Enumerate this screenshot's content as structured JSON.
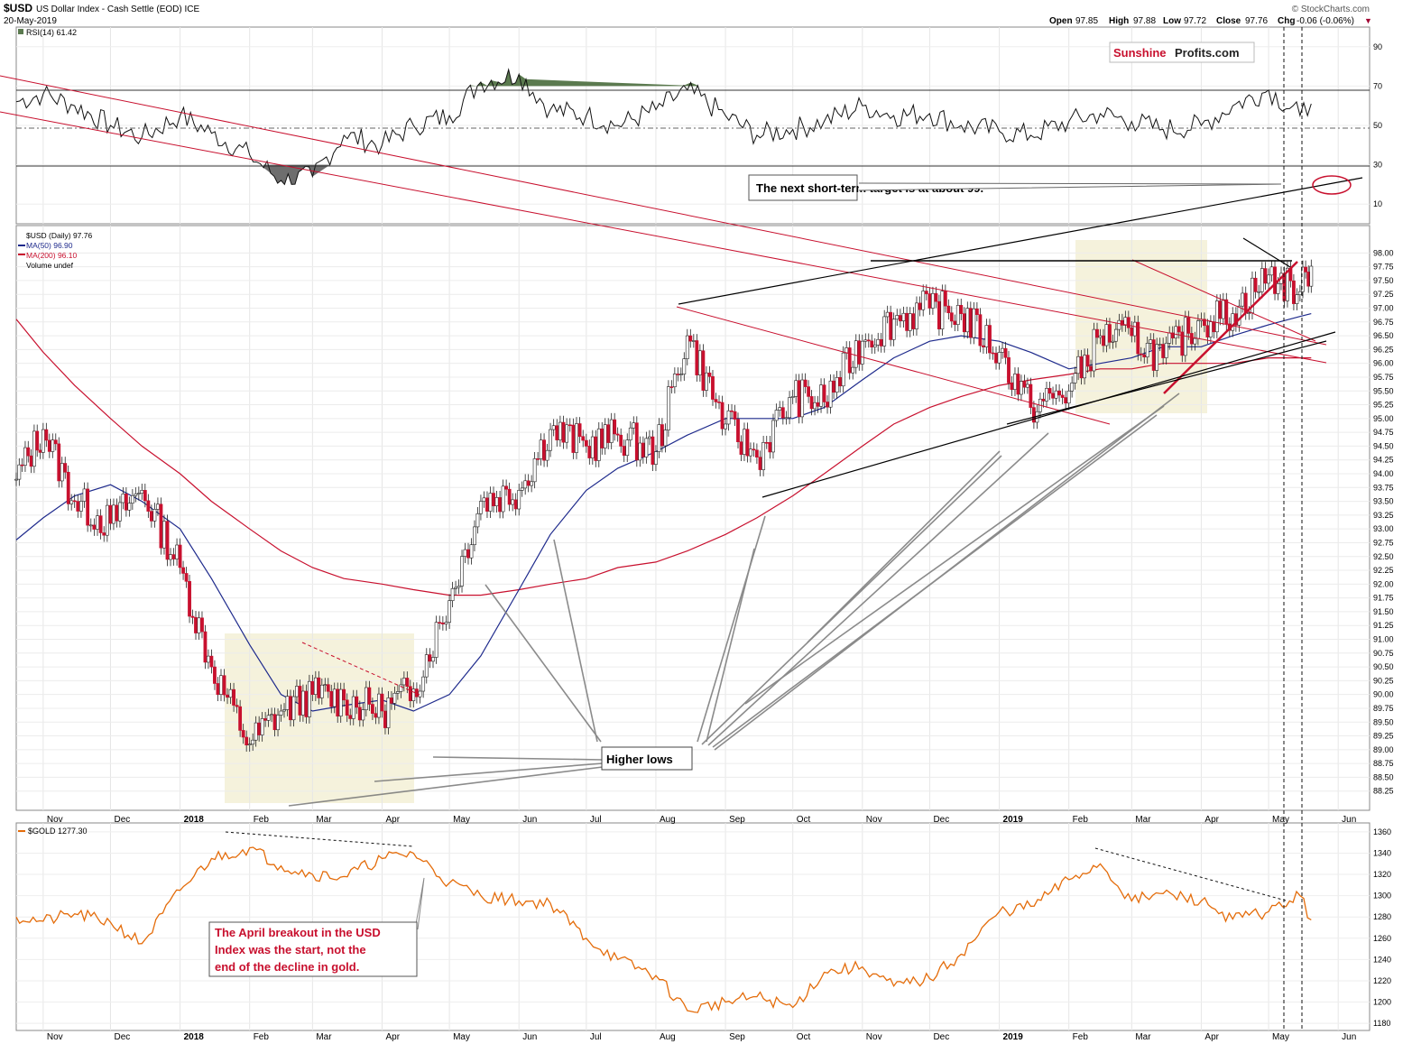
{
  "header": {
    "symbol": "$USD",
    "description": "US Dollar Index - Cash Settle (EOD) ICE",
    "date": "20-May-2019",
    "watermark": "© StockCharts.com",
    "open_label": "Open",
    "open_value": "97.85",
    "high_label": "High",
    "high_value": "97.88",
    "low_label": "Low",
    "low_value": "97.72",
    "close_label": "Close",
    "close_value": "97.76",
    "chg_label": "Chg",
    "chg_value": "-0.06 (-0.06%)",
    "down_arrow": "▼"
  },
  "logo": {
    "part1": "Sunshine",
    "part2": "Profits.com"
  },
  "rsi": {
    "legend": "RSI(14) 61.42"
  },
  "price": {
    "legend_usd": "$USD (Daily) 97.76",
    "legend_ma50": "MA(50) 96.90",
    "legend_ma200": "MA(200) 96.10",
    "legend_volume": "Volume undef"
  },
  "gold": {
    "legend": "$GOLD 1277.30"
  },
  "annotations": {
    "target": "The next short-term target is at about 99.",
    "higher_lows": "Higher lows",
    "breakout_line1": "The April breakout in the USD",
    "breakout_line2": "Index was the start, not the",
    "breakout_line3": "end of the decline in gold."
  },
  "colors": {
    "up_candle": "#ffffff",
    "down_candle": "#c8102e",
    "ma50": "#1e2a8c",
    "ma200": "#c8102e",
    "gold_line": "#e46c0a",
    "trend_red": "#c8102e",
    "highlight": "#f3f0d6",
    "rsi_over": "#5b7a4f",
    "rsi_under": "#6e6e6e",
    "logo_red": "#c8102e"
  },
  "chart_data": [
    {
      "type": "line",
      "title": "RSI(14) 61.42",
      "ylim": [
        0,
        100
      ],
      "yticks": [
        "90",
        "70",
        "50",
        "30",
        "10"
      ],
      "x": [
        "2017-10-20",
        "2017-11-01",
        "2017-11-15",
        "2017-12-01",
        "2017-12-15",
        "2018-01-01",
        "2018-01-15",
        "2018-02-01",
        "2018-02-15",
        "2018-03-01",
        "2018-03-15",
        "2018-04-01",
        "2018-04-15",
        "2018-05-01",
        "2018-05-15",
        "2018-06-01",
        "2018-06-15",
        "2018-07-01",
        "2018-07-15",
        "2018-08-01",
        "2018-08-15",
        "2018-09-01",
        "2018-09-15",
        "2018-10-01",
        "2018-10-15",
        "2018-11-01",
        "2018-11-15",
        "2018-12-01",
        "2018-12-15",
        "2019-01-01",
        "2019-01-15",
        "2019-02-01",
        "2019-02-15",
        "2019-03-01",
        "2019-03-15",
        "2019-04-01",
        "2019-04-15",
        "2019-05-01",
        "2019-05-15",
        "2019-05-20"
      ],
      "values": [
        62,
        66,
        60,
        50,
        44,
        55,
        46,
        35,
        22,
        24,
        45,
        40,
        50,
        55,
        72,
        76,
        58,
        55,
        50,
        58,
        68,
        55,
        45,
        48,
        52,
        60,
        55,
        56,
        50,
        47,
        45,
        52,
        56,
        52,
        48,
        50,
        60,
        68,
        55,
        61
      ]
    },
    {
      "type": "line",
      "title": "$USD (Daily) 97.76",
      "ylim": [
        88,
        98.3
      ],
      "yticks": [
        "98.00",
        "97.75",
        "97.50",
        "97.25",
        "97.00",
        "96.75",
        "96.50",
        "96.25",
        "96.00",
        "95.75",
        "95.50",
        "95.25",
        "95.00",
        "94.75",
        "94.50",
        "94.25",
        "94.00",
        "93.75",
        "93.50",
        "93.25",
        "93.00",
        "92.75",
        "92.50",
        "92.25",
        "92.00",
        "91.75",
        "91.50",
        "91.25",
        "91.00",
        "90.75",
        "90.50",
        "90.25",
        "90.00",
        "89.75",
        "89.50",
        "89.25",
        "89.00",
        "88.75",
        "88.50",
        "88.25"
      ],
      "x_ticks": [
        "Nov",
        "Dec",
        "2018",
        "Feb",
        "Mar",
        "Apr",
        "May",
        "Jun",
        "Jul",
        "Aug",
        "Sep",
        "Oct",
        "Nov",
        "Dec",
        "2019",
        "Feb",
        "Mar",
        "Apr",
        "May",
        "Jun"
      ],
      "x": [
        "2017-10-20",
        "2017-11-01",
        "2017-11-15",
        "2017-12-01",
        "2017-12-15",
        "2018-01-01",
        "2018-01-15",
        "2018-02-01",
        "2018-02-15",
        "2018-03-01",
        "2018-03-15",
        "2018-04-01",
        "2018-04-15",
        "2018-05-01",
        "2018-05-15",
        "2018-06-01",
        "2018-06-15",
        "2018-07-01",
        "2018-07-15",
        "2018-08-01",
        "2018-08-15",
        "2018-09-01",
        "2018-09-15",
        "2018-10-01",
        "2018-10-15",
        "2018-11-01",
        "2018-11-15",
        "2018-12-01",
        "2018-12-15",
        "2019-01-01",
        "2019-01-15",
        "2019-02-01",
        "2019-02-15",
        "2019-03-01",
        "2019-03-15",
        "2019-04-01",
        "2019-04-15",
        "2019-05-01",
        "2019-05-15",
        "2019-05-20"
      ],
      "series": [
        {
          "name": "$USD",
          "values": [
            93.9,
            94.8,
            93.5,
            93.1,
            93.7,
            92.3,
            90.5,
            89.1,
            89.7,
            90.0,
            89.9,
            89.7,
            90.1,
            91.7,
            93.5,
            93.7,
            94.8,
            94.5,
            94.7,
            94.4,
            96.5,
            94.9,
            94.3,
            95.4,
            95.3,
            96.4,
            96.8,
            97.0,
            96.9,
            96.2,
            95.2,
            95.5,
            96.5,
            96.5,
            96.1,
            96.8,
            96.9,
            97.6,
            97.3,
            97.76
          ]
        },
        {
          "name": "MA(50)",
          "values": [
            92.8,
            93.2,
            93.6,
            93.8,
            93.5,
            93.0,
            92.1,
            90.9,
            90.0,
            89.7,
            89.8,
            89.9,
            89.7,
            90.0,
            90.7,
            91.9,
            92.9,
            93.7,
            94.1,
            94.4,
            94.7,
            95.0,
            95.0,
            95.0,
            95.2,
            95.7,
            96.1,
            96.4,
            96.5,
            96.4,
            96.2,
            95.9,
            96.0,
            96.1,
            96.3,
            96.3,
            96.5,
            96.7,
            96.85,
            96.9
          ]
        },
        {
          "name": "MA(200)",
          "values": [
            96.8,
            96.2,
            95.6,
            95.0,
            94.5,
            94.0,
            93.5,
            93.0,
            92.6,
            92.3,
            92.1,
            92.0,
            91.9,
            91.8,
            91.8,
            91.9,
            92.0,
            92.1,
            92.3,
            92.4,
            92.6,
            92.9,
            93.2,
            93.6,
            94.0,
            94.5,
            94.9,
            95.2,
            95.4,
            95.6,
            95.7,
            95.8,
            95.9,
            95.9,
            96.0,
            96.0,
            96.0,
            96.1,
            96.1,
            96.1
          ]
        }
      ]
    },
    {
      "type": "line",
      "title": "$GOLD 1277.30",
      "ylim": [
        1175,
        1365
      ],
      "yticks": [
        "1360",
        "1340",
        "1320",
        "1300",
        "1280",
        "1260",
        "1240",
        "1220",
        "1200",
        "1180"
      ],
      "x": [
        "2017-10-20",
        "2017-11-01",
        "2017-11-15",
        "2017-12-01",
        "2017-12-15",
        "2018-01-01",
        "2018-01-15",
        "2018-02-01",
        "2018-02-15",
        "2018-03-01",
        "2018-03-15",
        "2018-04-01",
        "2018-04-15",
        "2018-05-01",
        "2018-05-15",
        "2018-06-01",
        "2018-06-15",
        "2018-07-01",
        "2018-07-15",
        "2018-08-01",
        "2018-08-15",
        "2018-09-01",
        "2018-09-15",
        "2018-10-01",
        "2018-10-15",
        "2018-11-01",
        "2018-11-15",
        "2018-12-01",
        "2018-12-15",
        "2019-01-01",
        "2019-01-15",
        "2019-02-01",
        "2019-02-15",
        "2019-03-01",
        "2019-03-15",
        "2019-04-01",
        "2019-04-15",
        "2019-05-01",
        "2019-05-15",
        "2019-05-20"
      ],
      "values": [
        1280,
        1276,
        1283,
        1275,
        1255,
        1305,
        1335,
        1345,
        1328,
        1320,
        1318,
        1335,
        1340,
        1312,
        1300,
        1295,
        1293,
        1260,
        1240,
        1225,
        1192,
        1200,
        1205,
        1195,
        1228,
        1233,
        1215,
        1222,
        1245,
        1285,
        1290,
        1315,
        1330,
        1295,
        1302,
        1295,
        1278,
        1285,
        1300,
        1277.3
      ]
    }
  ]
}
